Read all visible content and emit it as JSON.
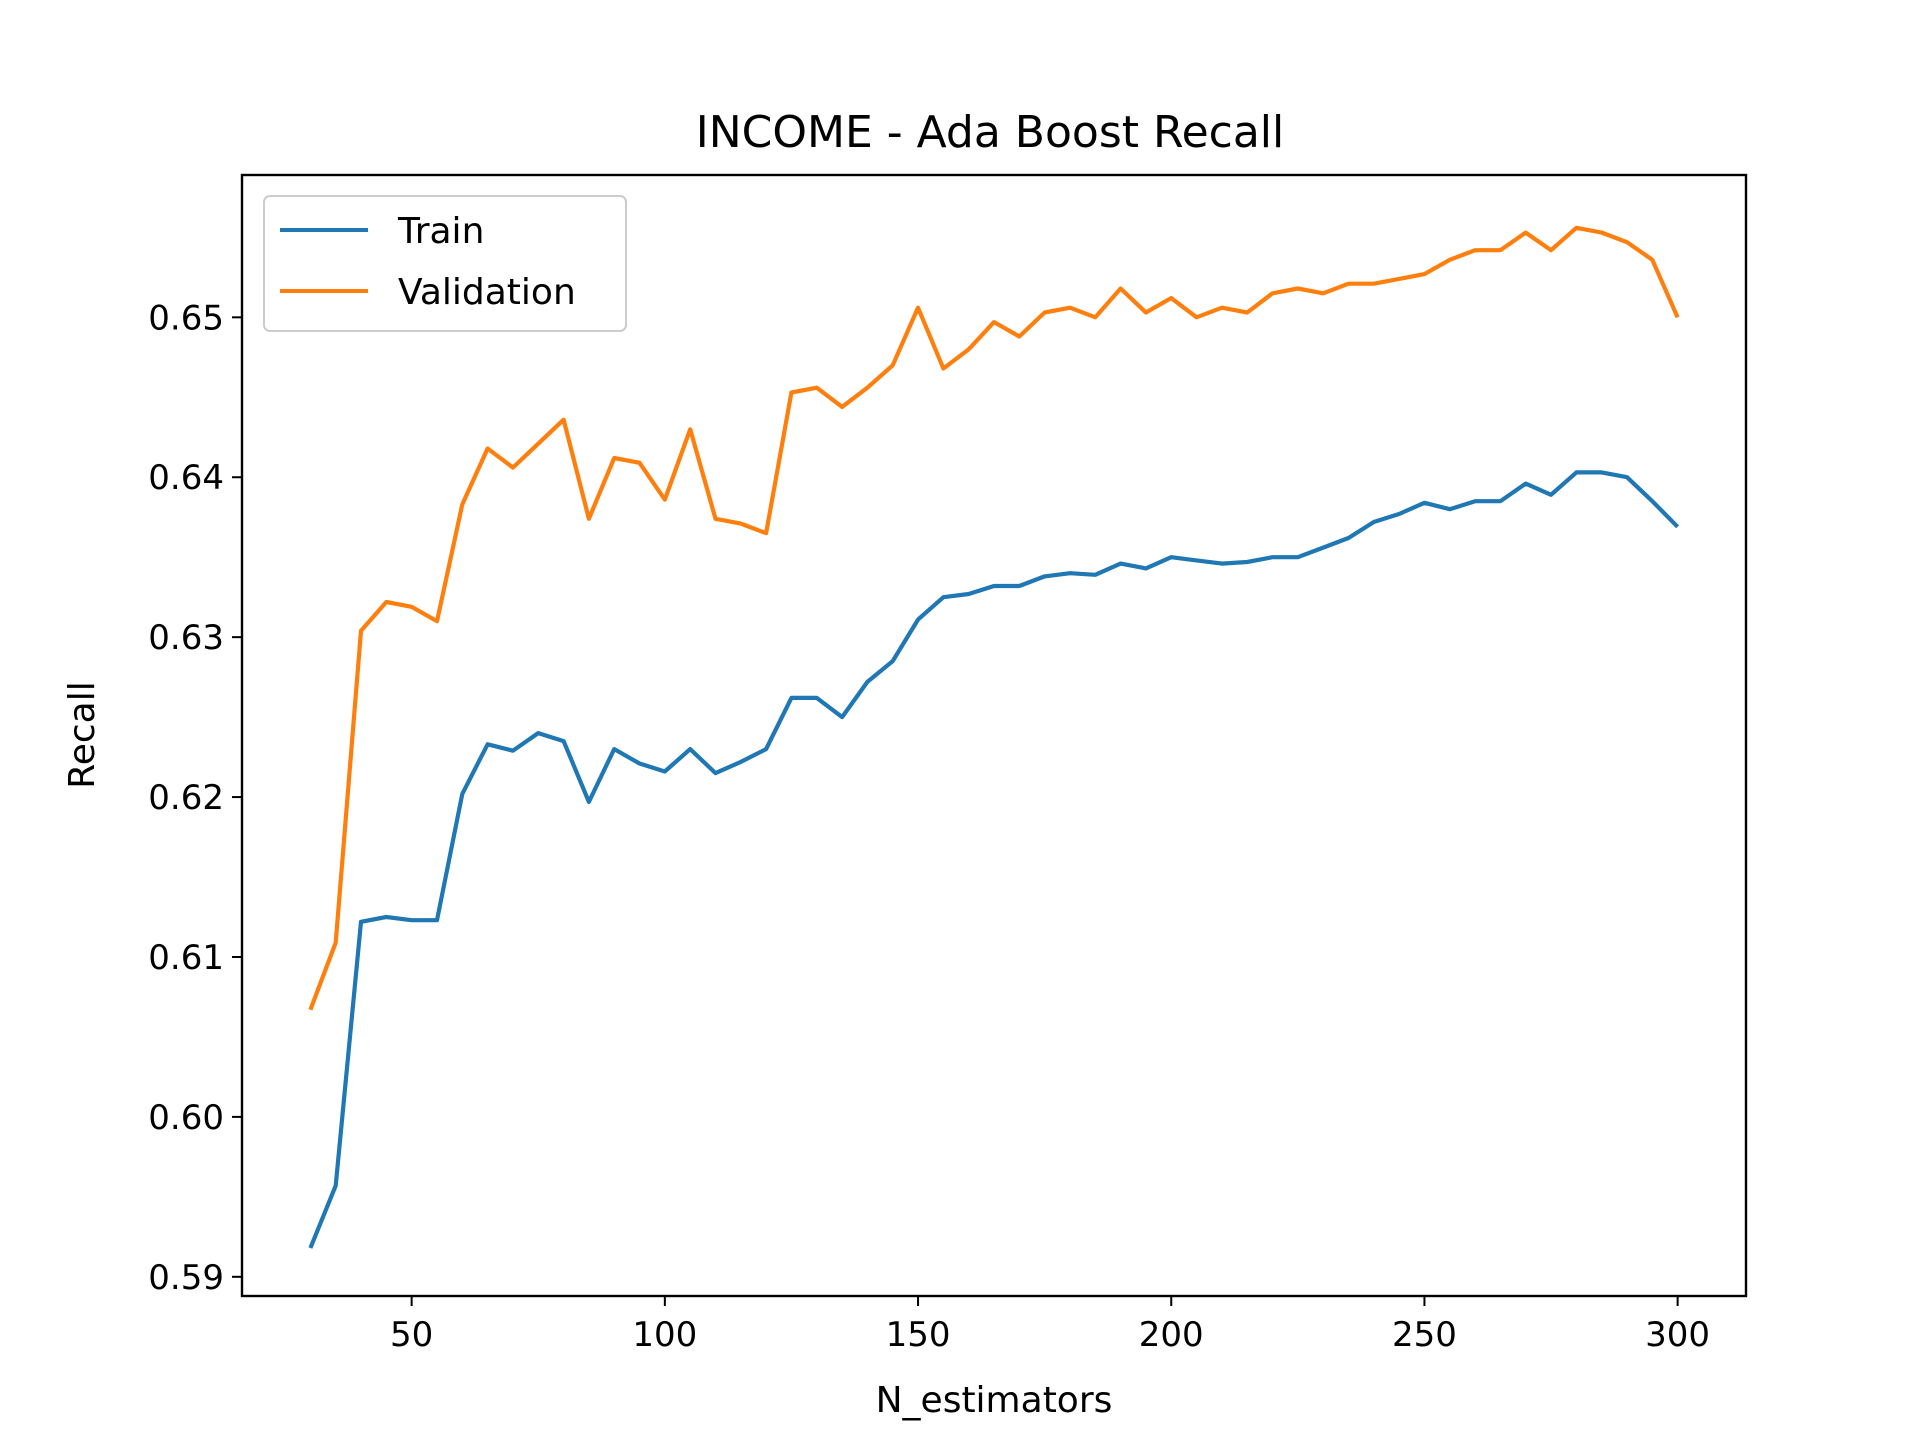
{
  "chart_data": {
    "type": "line",
    "title": "INCOME - Ada Boost Recall",
    "xlabel": "N_estimators",
    "ylabel": "Recall",
    "xlim": [
      16.5,
      313.5
    ],
    "ylim": [
      0.5888,
      0.6589
    ],
    "xticks": [
      50,
      100,
      150,
      200,
      250,
      300
    ],
    "xtick_labels": [
      "50",
      "100",
      "150",
      "200",
      "250",
      "300"
    ],
    "yticks": [
      0.59,
      0.6,
      0.61,
      0.62,
      0.63,
      0.64,
      0.65
    ],
    "ytick_labels": [
      "0.59",
      "0.60",
      "0.61",
      "0.62",
      "0.63",
      "0.64",
      "0.65"
    ],
    "grid": false,
    "legend_position": "upper-left",
    "x": [
      30,
      35,
      40,
      45,
      50,
      55,
      60,
      65,
      70,
      75,
      80,
      85,
      90,
      95,
      100,
      105,
      110,
      115,
      120,
      125,
      130,
      135,
      140,
      145,
      150,
      155,
      160,
      165,
      170,
      175,
      180,
      185,
      190,
      195,
      200,
      205,
      210,
      215,
      220,
      225,
      230,
      235,
      240,
      245,
      250,
      255,
      260,
      265,
      270,
      275,
      280,
      285,
      290,
      295,
      300
    ],
    "series": [
      {
        "name": "Train",
        "color": "#1f77b4",
        "values": [
          0.5918,
          0.5957,
          0.6122,
          0.6125,
          0.6123,
          0.6123,
          0.6202,
          0.6233,
          0.6229,
          0.624,
          0.6235,
          0.6197,
          0.623,
          0.6221,
          0.6216,
          0.623,
          0.6215,
          0.6222,
          0.623,
          0.6262,
          0.6262,
          0.625,
          0.6272,
          0.6285,
          0.6311,
          0.6325,
          0.6327,
          0.6332,
          0.6332,
          0.6338,
          0.634,
          0.6339,
          0.6346,
          0.6343,
          0.635,
          0.6348,
          0.6346,
          0.6347,
          0.635,
          0.635,
          0.6356,
          0.6362,
          0.6372,
          0.6377,
          0.6384,
          0.638,
          0.6385,
          0.6385,
          0.6396,
          0.6389,
          0.6403,
          0.6403,
          0.64,
          0.6385,
          0.6369
        ]
      },
      {
        "name": "Validation",
        "color": "#ff7f0e",
        "values": [
          0.6067,
          0.6109,
          0.6304,
          0.6322,
          0.6319,
          0.631,
          0.6383,
          0.6418,
          0.6406,
          0.6421,
          0.6436,
          0.6374,
          0.6412,
          0.6409,
          0.6386,
          0.643,
          0.6374,
          0.6371,
          0.6365,
          0.6453,
          0.6456,
          0.6444,
          0.6456,
          0.647,
          0.6506,
          0.6468,
          0.648,
          0.6497,
          0.6488,
          0.6503,
          0.6506,
          0.65,
          0.6518,
          0.6503,
          0.6512,
          0.65,
          0.6506,
          0.6503,
          0.6515,
          0.6518,
          0.6515,
          0.6521,
          0.6521,
          0.6524,
          0.6527,
          0.6536,
          0.6542,
          0.6542,
          0.6553,
          0.6542,
          0.6556,
          0.6553,
          0.6547,
          0.6536,
          0.65
        ]
      }
    ]
  }
}
